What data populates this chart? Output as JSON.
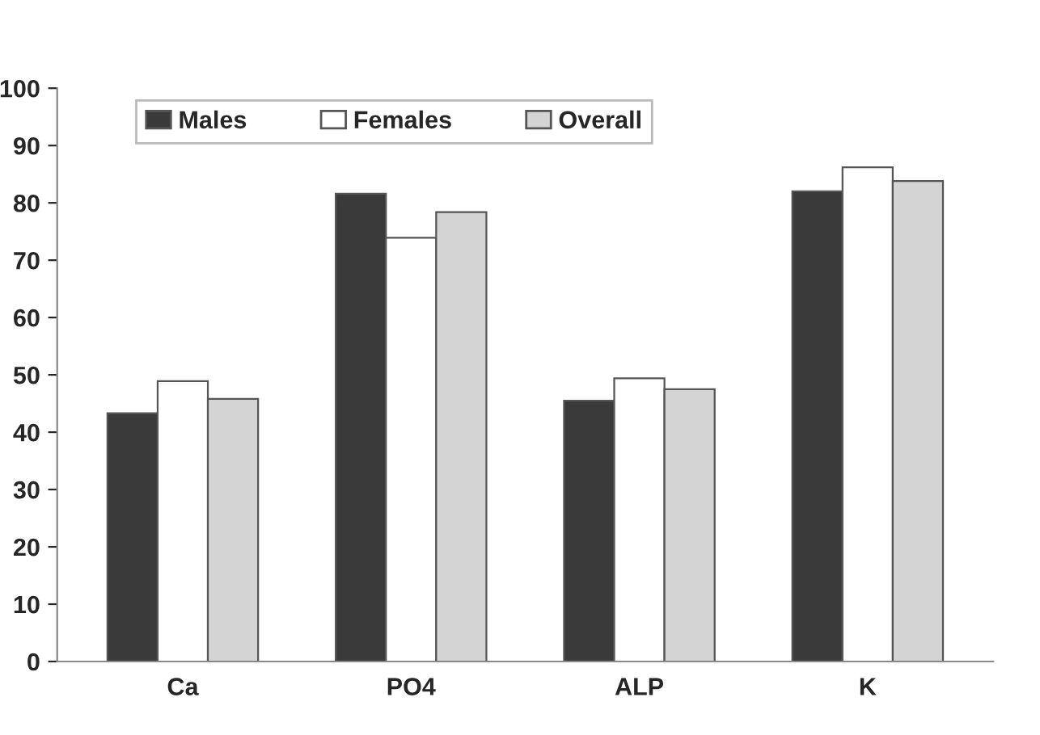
{
  "chart_data": {
    "type": "bar",
    "categories": [
      "Ca",
      "PO4",
      "ALP",
      "K"
    ],
    "series": [
      {
        "name": "Males",
        "color": "#3a3a3a",
        "values": [
          43.3,
          81.6,
          45.5,
          82
        ]
      },
      {
        "name": "Females",
        "color": "#ffffff",
        "values": [
          48.9,
          73.9,
          49.4,
          86.2
        ]
      },
      {
        "name": "Overall",
        "color": "#d4d4d4",
        "values": [
          45.8,
          78.4,
          47.5,
          83.8
        ]
      }
    ],
    "ylim": [
      0,
      100
    ],
    "yticks": [
      0,
      10,
      20,
      30,
      40,
      50,
      60,
      70,
      80,
      90,
      100
    ],
    "grid": false,
    "legend": "top"
  }
}
